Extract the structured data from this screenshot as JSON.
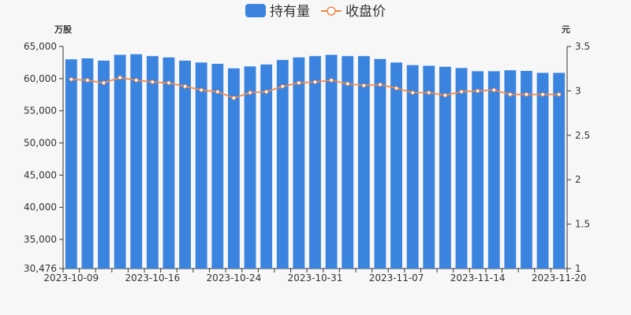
{
  "chart_data": {
    "type": "bar+line",
    "legend": {
      "position": "top-center",
      "items": [
        {
          "label": "持有量",
          "marker": "bar",
          "color": "#3a84e0"
        },
        {
          "label": "收盘价",
          "marker": "line-circle",
          "color": "#f08a4b"
        }
      ]
    },
    "y_left": {
      "unit": "万股",
      "min": 30476,
      "max": 65000,
      "ticks": [
        "30,476",
        "35,000",
        "40,000",
        "45,000",
        "50,000",
        "55,000",
        "60,000",
        "65,000"
      ],
      "tick_values": [
        30476,
        35000,
        40000,
        45000,
        50000,
        55000,
        60000,
        65000
      ]
    },
    "y_right": {
      "unit": "元",
      "min": 1,
      "max": 3.5,
      "ticks": [
        "1",
        "1.5",
        "2",
        "2.5",
        "3",
        "3.5"
      ],
      "tick_values": [
        1,
        1.5,
        2,
        2.5,
        3,
        3.5
      ]
    },
    "x_labels": [
      {
        "text": "2023-10-09",
        "index": 0
      },
      {
        "text": "2023-10-16",
        "index": 5
      },
      {
        "text": "2023-10-24",
        "index": 10
      },
      {
        "text": "2023-10-31",
        "index": 15
      },
      {
        "text": "2023-11-07",
        "index": 20
      },
      {
        "text": "2023-11-14",
        "index": 25
      },
      {
        "text": "2023-11-20",
        "index": 30
      }
    ],
    "categories": [
      "2023-10-09",
      "2023-10-10",
      "2023-10-11",
      "2023-10-12",
      "2023-10-13",
      "2023-10-16",
      "2023-10-17",
      "2023-10-18",
      "2023-10-19",
      "2023-10-20",
      "2023-10-23",
      "2023-10-24",
      "2023-10-25",
      "2023-10-26",
      "2023-10-27",
      "2023-10-30",
      "2023-10-31",
      "2023-11-01",
      "2023-11-02",
      "2023-11-03",
      "2023-11-06",
      "2023-11-07",
      "2023-11-08",
      "2023-11-09",
      "2023-11-10",
      "2023-11-13",
      "2023-11-14",
      "2023-11-15",
      "2023-11-16",
      "2023-11-17",
      "2023-11-20"
    ],
    "series": [
      {
        "name": "持有量",
        "type": "bar",
        "axis": "left",
        "color": "#3a84e0",
        "values": [
          63000,
          63150,
          62800,
          63700,
          63800,
          63500,
          63300,
          62800,
          62500,
          62300,
          61600,
          61900,
          62200,
          62900,
          63300,
          63500,
          63700,
          63500,
          63500,
          63050,
          62500,
          62100,
          62000,
          61850,
          61650,
          61150,
          61150,
          61300,
          61200,
          60900,
          60900
        ]
      },
      {
        "name": "收盘价",
        "type": "line",
        "axis": "right",
        "color": "#f08a4b",
        "values": [
          3.13,
          3.12,
          3.09,
          3.15,
          3.12,
          3.1,
          3.09,
          3.05,
          3.01,
          2.99,
          2.92,
          2.98,
          2.99,
          3.05,
          3.09,
          3.1,
          3.12,
          3.08,
          3.06,
          3.07,
          3.03,
          2.98,
          2.98,
          2.95,
          2.99,
          3.0,
          3.01,
          2.96,
          2.96,
          2.96,
          2.96
        ]
      }
    ]
  }
}
